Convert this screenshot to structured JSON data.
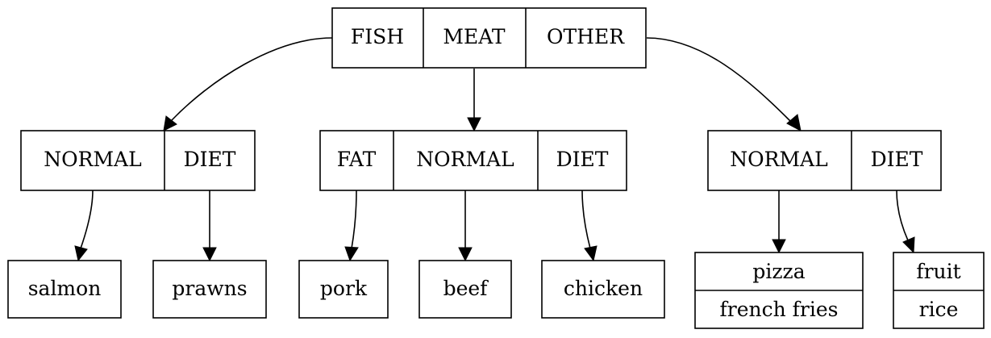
{
  "root": {
    "fields": [
      "FISH",
      "MEAT",
      "OTHER"
    ]
  },
  "categories": [
    {
      "fields": [
        "NORMAL",
        "DIET"
      ]
    },
    {
      "fields": [
        "FAT",
        "NORMAL",
        "DIET"
      ]
    },
    {
      "fields": [
        "NORMAL",
        "DIET"
      ]
    }
  ],
  "leaves": [
    {
      "fields": [
        "salmon"
      ]
    },
    {
      "fields": [
        "prawns"
      ]
    },
    {
      "fields": [
        "pork"
      ]
    },
    {
      "fields": [
        "beef"
      ]
    },
    {
      "fields": [
        "chicken"
      ]
    },
    {
      "fields": [
        "pizza",
        "french fries"
      ]
    },
    {
      "fields": [
        "fruit",
        "rice"
      ]
    }
  ]
}
